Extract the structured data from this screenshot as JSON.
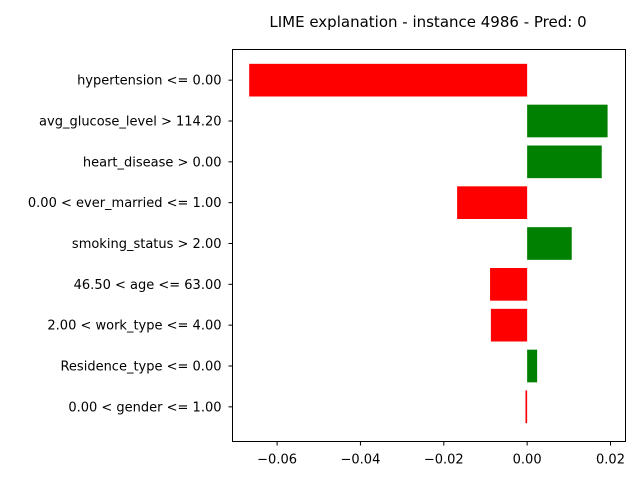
{
  "chart_data": {
    "type": "bar",
    "orientation": "horizontal",
    "title": "LIME explanation - instance 4986 - Pred: 0",
    "xlabel": "",
    "ylabel": "",
    "categories": [
      "hypertension <= 0.00",
      "avg_glucose_level > 114.20",
      "heart_disease > 0.00",
      "0.00 < ever_married <= 1.00",
      "smoking_status > 2.00",
      "46.50 < age <= 63.00",
      "2.00 < work_type <= 4.00",
      "Residence_type <= 0.00",
      "0.00 < gender <= 1.00"
    ],
    "values": [
      -0.0667,
      0.0193,
      0.0179,
      -0.0168,
      0.0107,
      -0.0089,
      -0.0087,
      0.0024,
      -0.0004
    ],
    "xlim": [
      -0.0707,
      0.0236
    ],
    "xticks": [
      -0.06,
      -0.04,
      -0.02,
      0.0,
      0.02
    ],
    "xtick_labels": [
      "−0.06",
      "−0.04",
      "−0.02",
      "0.00",
      "0.02"
    ],
    "grid": false,
    "legend": "none",
    "colors": {
      "positive": "#008000",
      "negative": "#ff0000"
    }
  }
}
